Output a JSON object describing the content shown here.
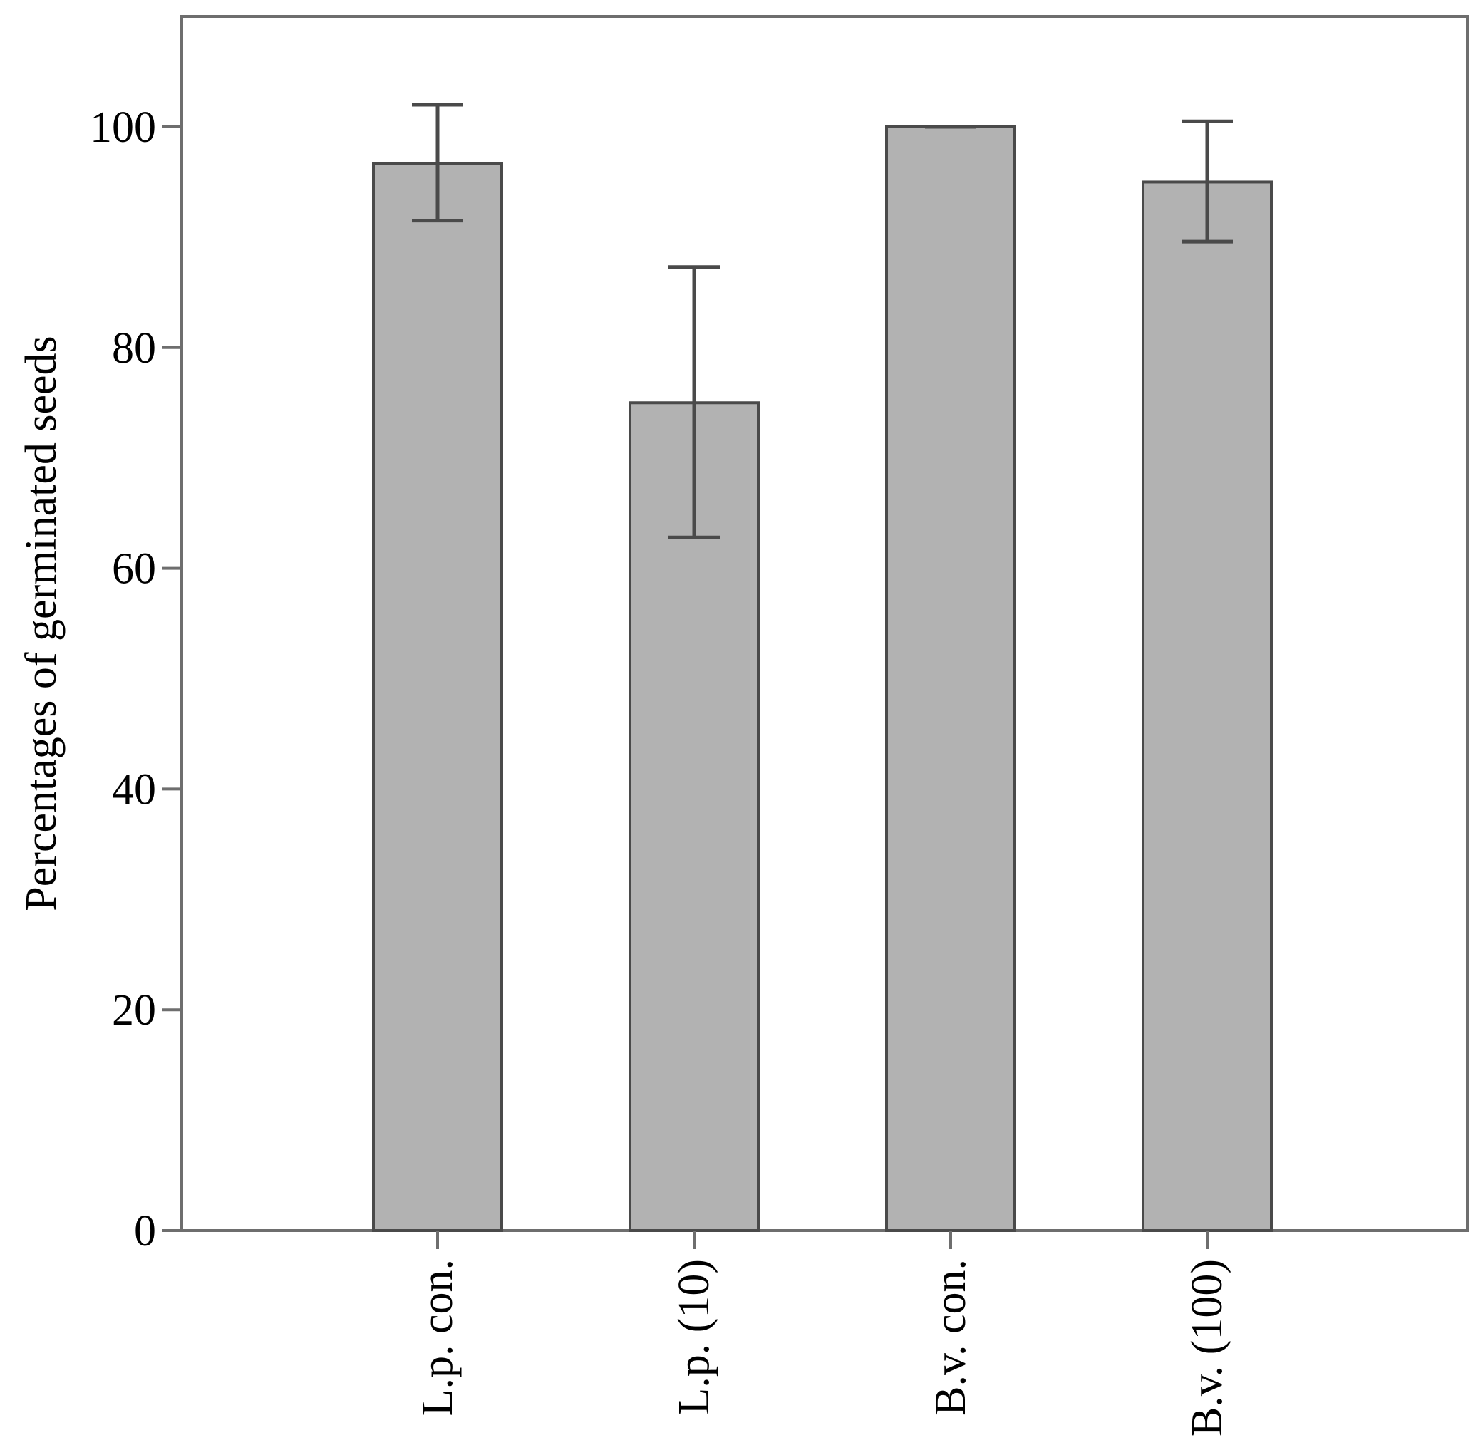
{
  "chart_data": {
    "type": "bar",
    "title": "",
    "xlabel": "",
    "ylabel": "Percentages of germinated seeds",
    "categories": [
      "L.p. con.",
      "L.p. (10)",
      "B.v. con.",
      "B.v. (100)"
    ],
    "values": [
      96.7,
      75.0,
      100.0,
      95.0
    ],
    "error_low": [
      91.5,
      62.8,
      100.0,
      89.6
    ],
    "error_high": [
      102.0,
      87.3,
      100.0,
      100.5
    ],
    "ylim": [
      0,
      110
    ],
    "yticks": [
      0,
      20,
      40,
      60,
      80,
      100
    ],
    "ytick_labels": [
      "0",
      "20",
      "40",
      "60",
      "80",
      "100"
    ],
    "grid": false,
    "legend": "none",
    "colors": {
      "bar_fill": "#b2b2b2",
      "bar_stroke": "#4a4a4a",
      "error_bar": "#4a4a4a",
      "frame": "#6e6e6e"
    }
  }
}
